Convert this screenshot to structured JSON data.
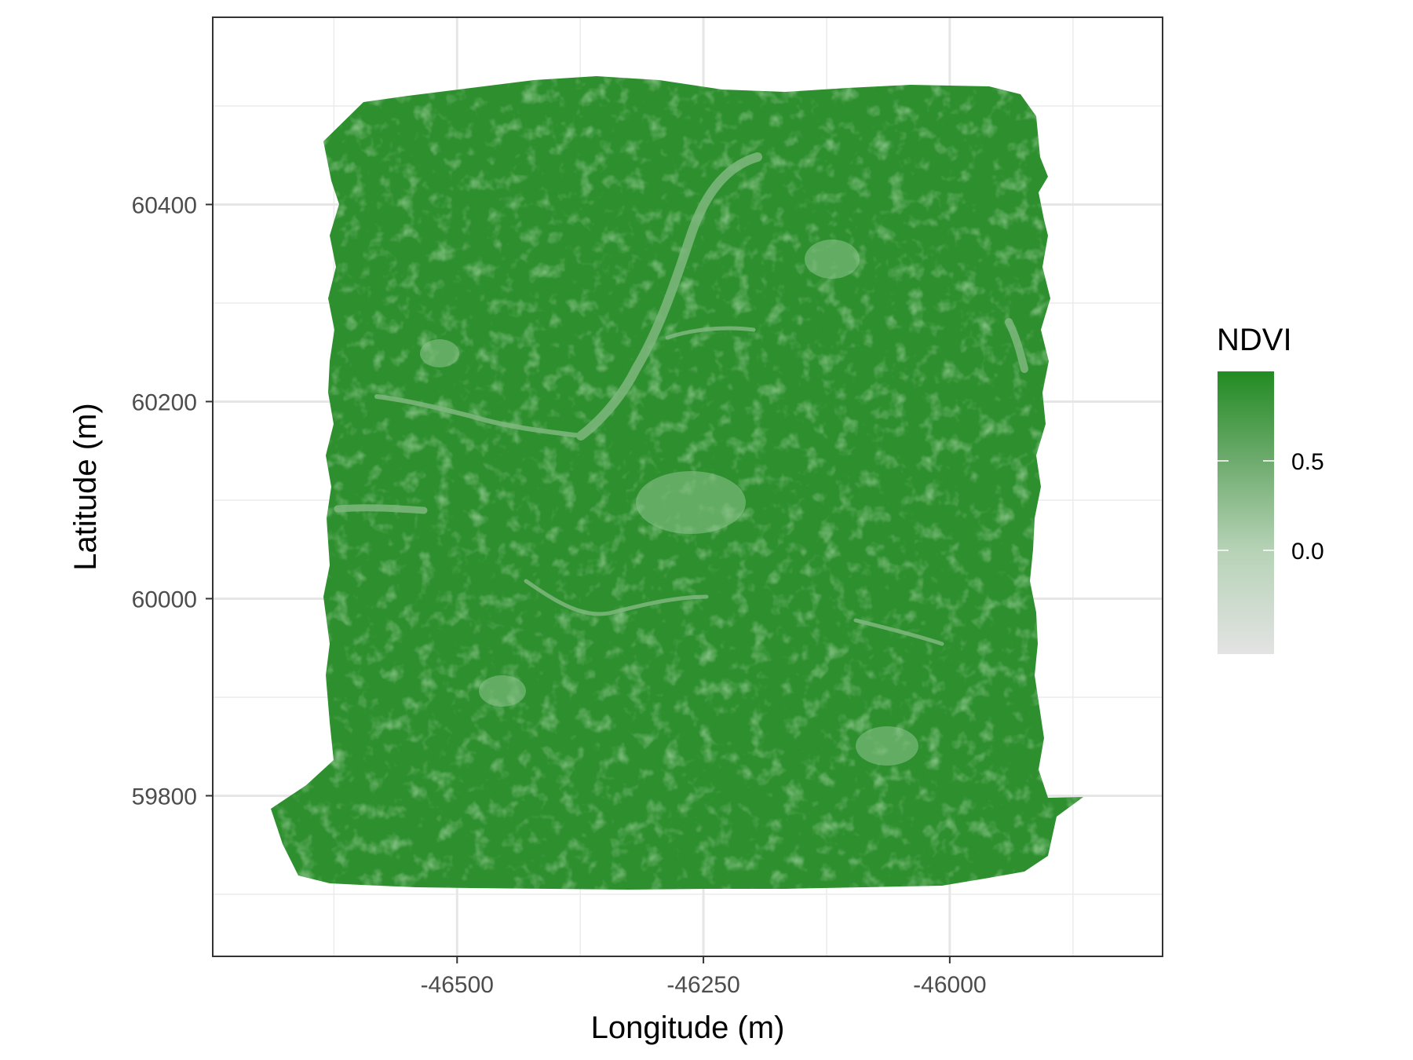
{
  "map": {
    "xlabel": "Longitude (m)",
    "ylabel": "Latitude (m)",
    "x_ticks": [
      {
        "value": -46500,
        "label": "-46500"
      },
      {
        "value": -46250,
        "label": "-46250"
      },
      {
        "value": -46000,
        "label": "-46000"
      }
    ],
    "y_ticks": [
      {
        "value": 59800,
        "label": "59800"
      },
      {
        "value": 60000,
        "label": "60000"
      },
      {
        "value": 60200,
        "label": "60200"
      },
      {
        "value": 60400,
        "label": "60400"
      }
    ],
    "xlim": [
      -46748,
      -45784
    ],
    "ylim": [
      59637,
      60590
    ],
    "grid": true,
    "raster": {
      "variable": "NDVI",
      "extent_x": [
        -46690,
        -45830
      ],
      "extent_y": [
        59700,
        60522
      ],
      "dominant_color": "#2d8f2d"
    }
  },
  "legend": {
    "title": "NDVI",
    "placement": "right",
    "colors": {
      "high": "#228b22",
      "mid": "#8fbc8f",
      "low": "#e3e3e3"
    },
    "range": [
      -0.58,
      1.0
    ],
    "breaks": [
      {
        "value": 0.5,
        "label": "0.5"
      },
      {
        "value": 0.0,
        "label": "0.0"
      }
    ]
  }
}
